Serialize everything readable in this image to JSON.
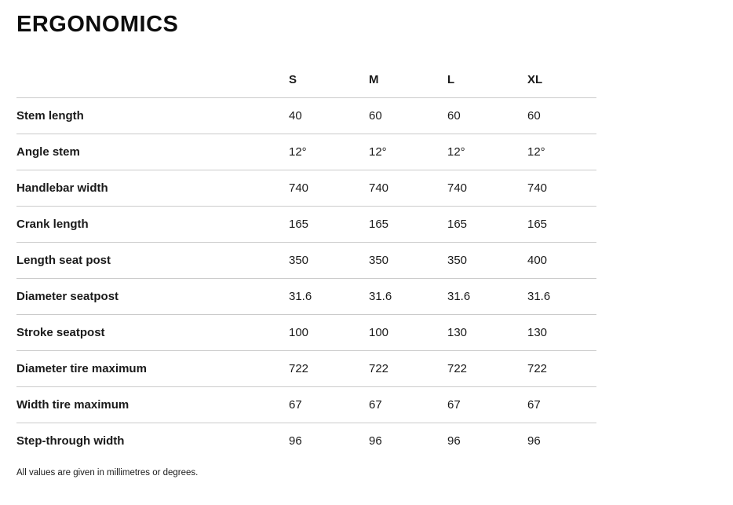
{
  "page": {
    "title": "ERGONOMICS",
    "footnote": "All values are given in millimetres or degrees."
  },
  "table": {
    "columns": [
      "S",
      "M",
      "L",
      "XL"
    ],
    "rows": [
      {
        "label": "Stem length",
        "values": [
          "40",
          "60",
          "60",
          "60"
        ]
      },
      {
        "label": "Angle stem",
        "values": [
          "12°",
          "12°",
          "12°",
          "12°"
        ]
      },
      {
        "label": "Handlebar width",
        "values": [
          "740",
          "740",
          "740",
          "740"
        ]
      },
      {
        "label": "Crank length",
        "values": [
          "165",
          "165",
          "165",
          "165"
        ]
      },
      {
        "label": "Length seat post",
        "values": [
          "350",
          "350",
          "350",
          "400"
        ]
      },
      {
        "label": "Diameter seatpost",
        "values": [
          "31.6",
          "31.6",
          "31.6",
          "31.6"
        ]
      },
      {
        "label": "Stroke seatpost",
        "values": [
          "100",
          "100",
          "130",
          "130"
        ]
      },
      {
        "label": "Diameter tire maximum",
        "values": [
          "722",
          "722",
          "722",
          "722"
        ]
      },
      {
        "label": "Width tire maximum",
        "values": [
          "67",
          "67",
          "67",
          "67"
        ]
      },
      {
        "label": "Step-through width",
        "values": [
          "96",
          "96",
          "96",
          "96"
        ]
      }
    ]
  },
  "colors": {
    "background": "#ffffff",
    "text": "#1a1a1a",
    "divider": "#cbcbcb"
  }
}
